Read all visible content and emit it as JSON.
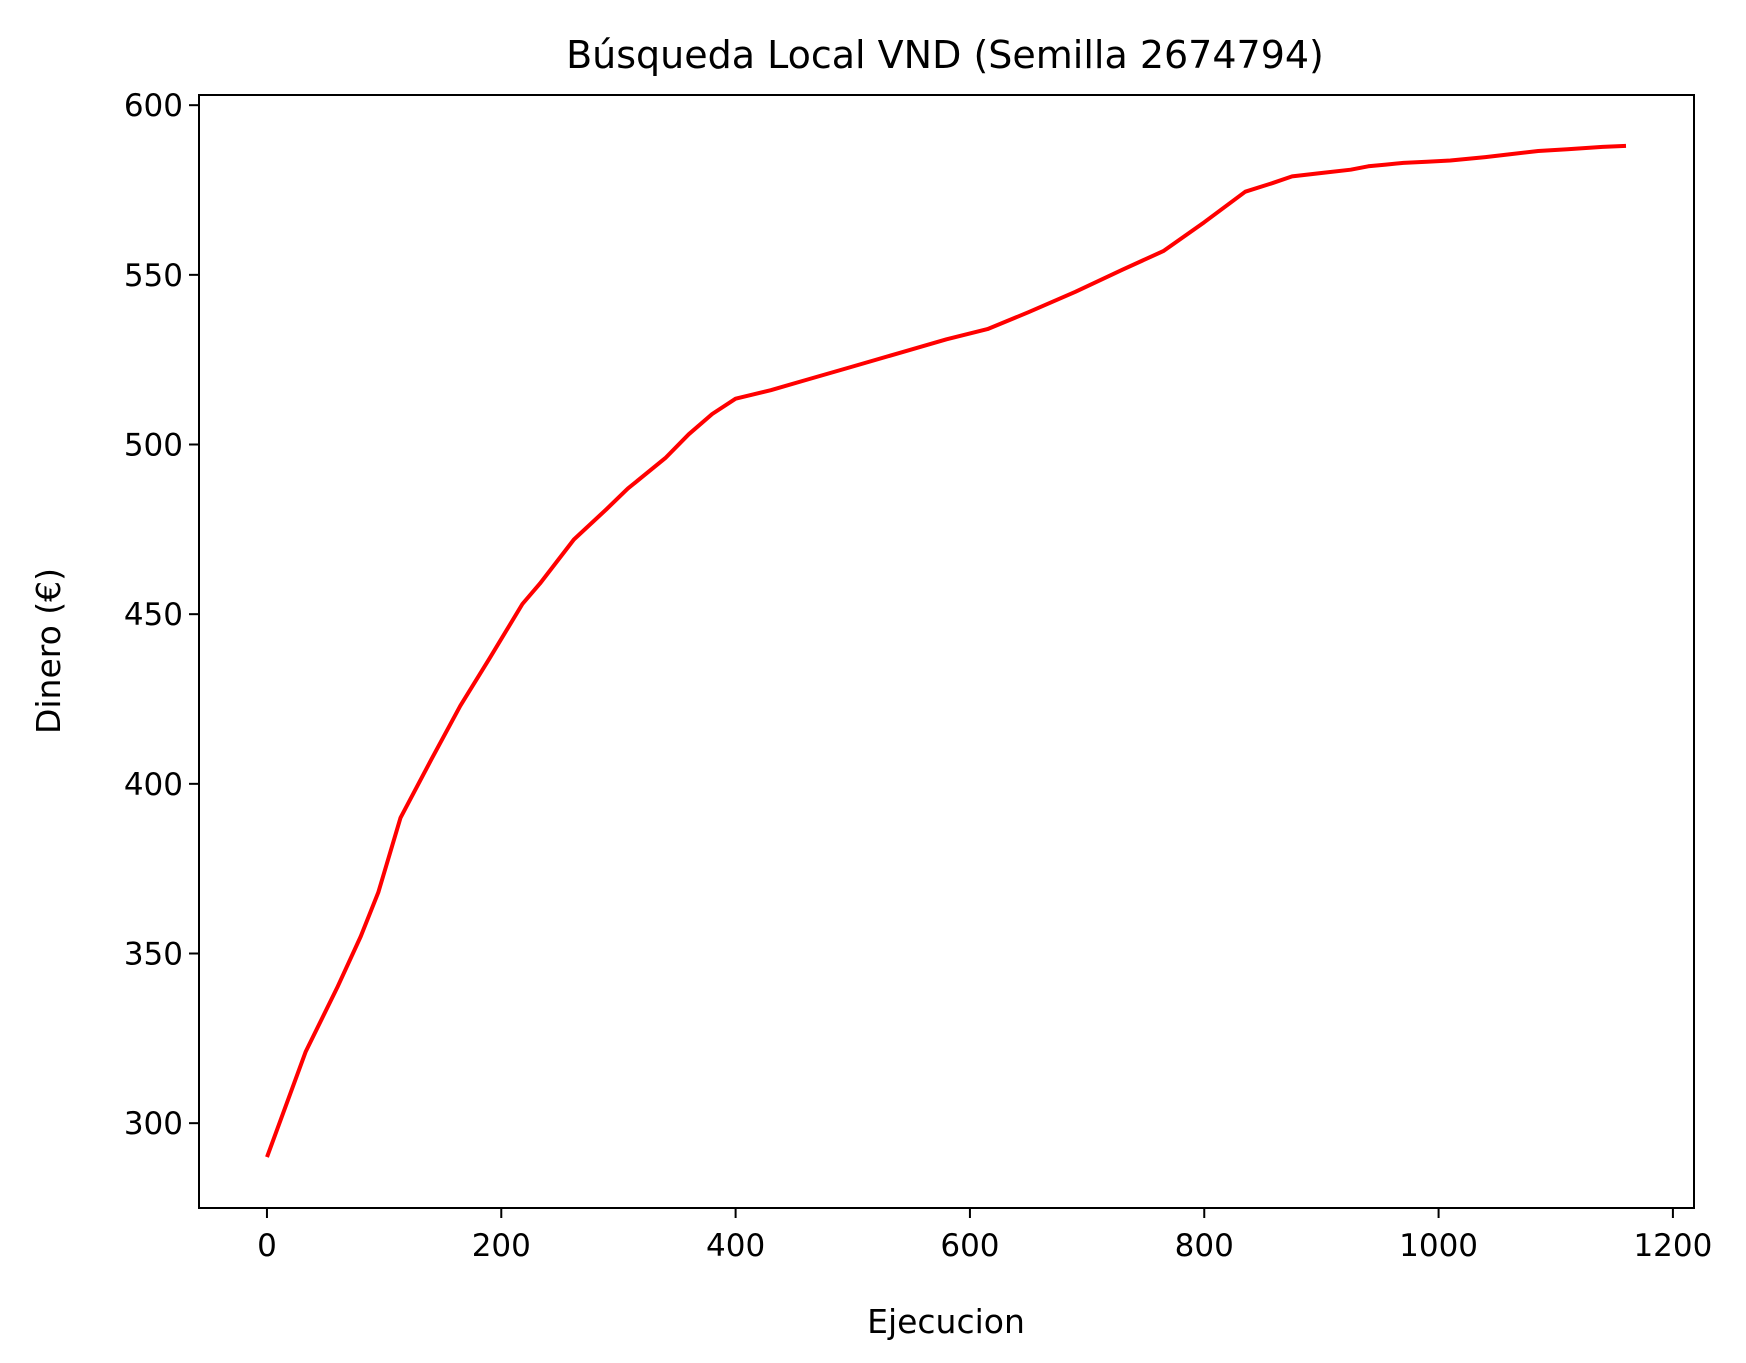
{
  "chart_data": {
    "type": "line",
    "title": "Búsqueda Local VND (Semilla 2674794)",
    "xlabel": "Ejecucion",
    "ylabel": "Dinero (€)",
    "xlim": [
      -58,
      1218
    ],
    "ylim": [
      275,
      603
    ],
    "xticks": [
      0,
      200,
      400,
      600,
      800,
      1000,
      1200
    ],
    "yticks": [
      300,
      350,
      400,
      450,
      500,
      550,
      600
    ],
    "grid": false,
    "series": [
      {
        "color": "#ff0000",
        "x": [
          0,
          33,
          60,
          80,
          95,
          114,
          140,
          165,
          190,
          218,
          233,
          262,
          290,
          308,
          340,
          360,
          380,
          400,
          430,
          460,
          500,
          540,
          580,
          615,
          650,
          690,
          730,
          765,
          800,
          835,
          858,
          875,
          900,
          925,
          940,
          955,
          970,
          990,
          1010,
          1040,
          1060,
          1085,
          1110,
          1140,
          1160
        ],
        "y": [
          290,
          321,
          340,
          355,
          368,
          390,
          407,
          423,
          437,
          453,
          459,
          472,
          481,
          487,
          496,
          503,
          509,
          513.5,
          516,
          519,
          523,
          527,
          531,
          534,
          539,
          545,
          551.5,
          557,
          565.5,
          574.5,
          577,
          579,
          580,
          581,
          582,
          582.5,
          583,
          583.3,
          583.7,
          584.7,
          585.5,
          586.5,
          587,
          587.7,
          588
        ]
      }
    ]
  }
}
